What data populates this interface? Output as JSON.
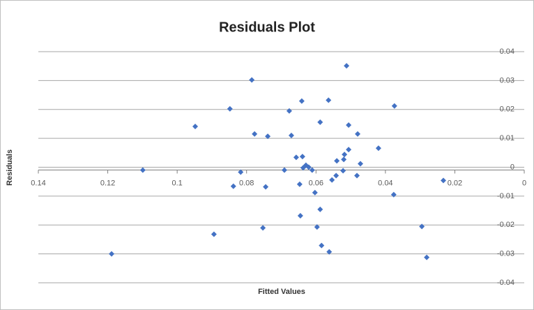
{
  "chart_data": {
    "type": "scatter",
    "title": "Residuals Plot",
    "x_label": "Fitted Values",
    "y_label": "Residuals",
    "color": "#4472c4",
    "grid": true,
    "x_reversed": true,
    "xlim": [
      0,
      0.14
    ],
    "xticks": [
      0.14,
      0.12,
      0.1,
      0.08,
      0.06,
      0.04,
      0.02,
      0
    ],
    "ylim": [
      -0.04,
      0.04
    ],
    "yticks": [
      0.04,
      0.03,
      0.02,
      0.01,
      0,
      -0.01,
      -0.02,
      -0.03,
      -0.04
    ],
    "series": [
      {
        "name": "Residuals",
        "x": [
          0.0512,
          0.0785,
          0.0641,
          0.0564,
          0.0848,
          0.0677,
          0.0374,
          0.0948,
          0.0588,
          0.0506,
          0.0777,
          0.0739,
          0.0671,
          0.048,
          0.042,
          0.0506,
          0.0518,
          0.0657,
          0.0639,
          0.054,
          0.052,
          0.0472,
          0.1099,
          0.0629,
          0.0621,
          0.0637,
          0.0691,
          0.0611,
          0.0817,
          0.0522,
          0.0542,
          0.0554,
          0.0482,
          0.0233,
          0.0838,
          0.0745,
          0.0647,
          0.0603,
          0.0376,
          0.0588,
          0.0645,
          0.0597,
          0.0753,
          0.0295,
          0.0894,
          0.0584,
          0.0562,
          0.1189,
          0.0281
        ],
        "values": [
          0.0351,
          0.0302,
          0.0229,
          0.0232,
          0.0202,
          0.0195,
          0.0212,
          0.0141,
          0.0156,
          0.0146,
          0.0115,
          0.0107,
          0.011,
          0.0115,
          0.0066,
          0.0061,
          0.0044,
          0.0034,
          0.0037,
          0.0022,
          0.0027,
          0.0012,
          -0.001,
          0.0007,
          0,
          -0.0002,
          -0.001,
          -0.001,
          -0.0017,
          -0.0012,
          -0.0029,
          -0.0044,
          -0.0029,
          -0.0046,
          -0.0066,
          -0.0068,
          -0.0059,
          -0.0088,
          -0.0095,
          -0.0146,
          -0.0168,
          -0.0207,
          -0.021,
          -0.0205,
          -0.0232,
          -0.0271,
          -0.0293,
          -0.03,
          -0.0312
        ]
      }
    ]
  }
}
